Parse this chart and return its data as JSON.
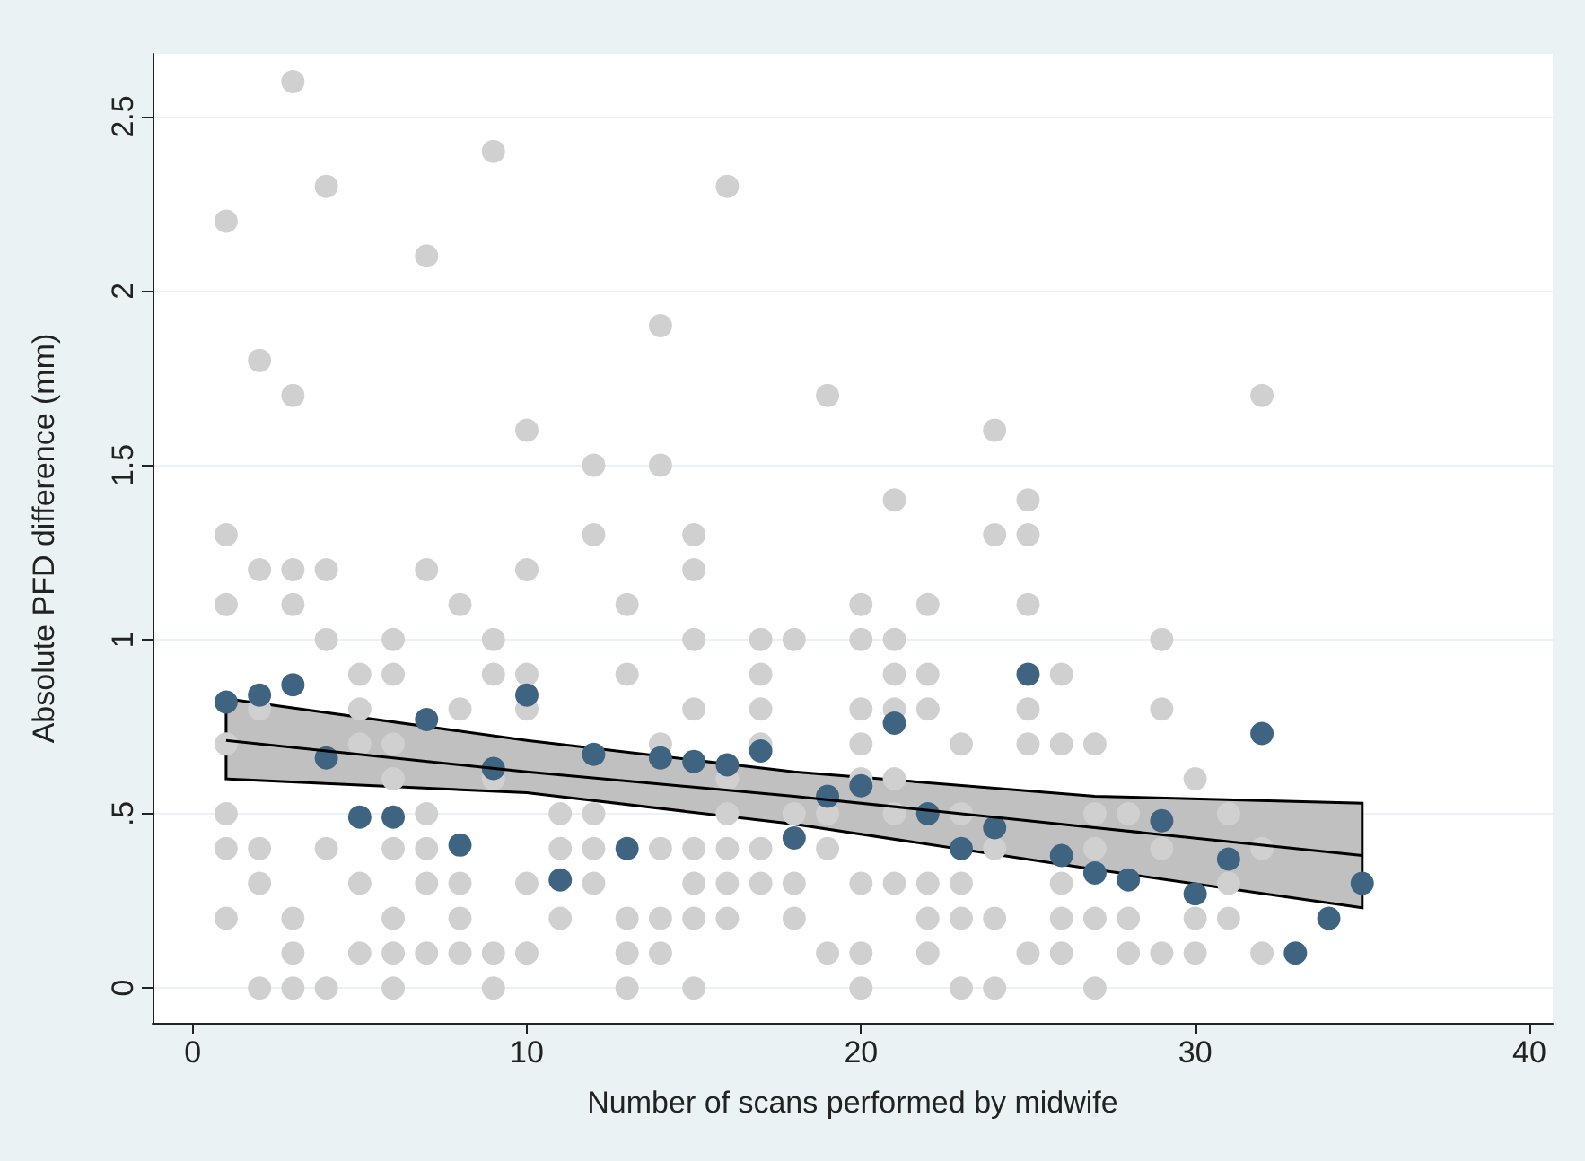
{
  "chart_data": {
    "type": "scatter",
    "xlabel": "Number of scans performed by midwife",
    "ylabel": "Absolute PFD difference (mm)",
    "xlim": [
      -1.2,
      40.7
    ],
    "ylim": [
      -0.1,
      2.68
    ],
    "xticks": [
      0,
      10,
      20,
      30,
      40
    ],
    "yticks": [
      0,
      {
        "value": 0.5,
        "label": ".5"
      },
      1,
      1.5,
      2,
      2.5
    ],
    "grid": "y",
    "marker": "circle",
    "series": [
      {
        "color": "#d0d0d0",
        "x": [
          1,
          1,
          1,
          1,
          1,
          1,
          1,
          2,
          2,
          2,
          2,
          2,
          2,
          3,
          3,
          3,
          3,
          3,
          3,
          3,
          4,
          4,
          4,
          4,
          4,
          5,
          5,
          5,
          5,
          5,
          6,
          6,
          6,
          6,
          6,
          6,
          6,
          6,
          7,
          7,
          7,
          7,
          7,
          7,
          8,
          8,
          8,
          8,
          8,
          9,
          9,
          9,
          9,
          9,
          9,
          10,
          10,
          10,
          10,
          10,
          10,
          11,
          11,
          11,
          12,
          12,
          12,
          12,
          12,
          13,
          13,
          13,
          13,
          13,
          14,
          14,
          14,
          14,
          14,
          14,
          15,
          15,
          15,
          15,
          15,
          15,
          15,
          15,
          16,
          16,
          16,
          16,
          16,
          16,
          17,
          17,
          17,
          17,
          17,
          17,
          18,
          18,
          18,
          18,
          19,
          19,
          19,
          19,
          20,
          20,
          20,
          20,
          20,
          20,
          20,
          20,
          21,
          21,
          21,
          21,
          21,
          21,
          21,
          22,
          22,
          22,
          22,
          22,
          22,
          23,
          23,
          23,
          23,
          23,
          24,
          24,
          24,
          24,
          24,
          25,
          25,
          25,
          25,
          25,
          25,
          26,
          26,
          26,
          26,
          26,
          27,
          27,
          27,
          27,
          27,
          28,
          28,
          28,
          29,
          29,
          29,
          29,
          30,
          30,
          30,
          31,
          31,
          31,
          32,
          32,
          32
        ],
        "values": [
          2.2,
          1.3,
          1.1,
          0.7,
          0.5,
          0.4,
          0.2,
          1.8,
          1.2,
          0.8,
          0.4,
          0.3,
          0,
          2.6,
          1.7,
          1.2,
          1.1,
          0.2,
          0.1,
          0,
          2.3,
          1.2,
          1,
          0.4,
          0,
          0.9,
          0.8,
          0.7,
          0.3,
          0.1,
          1,
          0.9,
          0.7,
          0.6,
          0.4,
          0.2,
          0.1,
          0,
          2.1,
          1.2,
          0.5,
          0.4,
          0.3,
          0.1,
          1.1,
          0.8,
          0.3,
          0.2,
          0.1,
          2.4,
          1,
          0.9,
          0.6,
          0.1,
          0,
          1.6,
          1.2,
          0.9,
          0.8,
          0.3,
          0.1,
          0.5,
          0.4,
          0.2,
          1.5,
          1.3,
          0.5,
          0.4,
          0.3,
          1.1,
          0.9,
          0.2,
          0.1,
          0,
          1.9,
          1.5,
          0.7,
          0.4,
          0.2,
          0.1,
          1.3,
          1.2,
          1,
          0.8,
          0.4,
          0.3,
          0.2,
          0,
          2.3,
          0.6,
          0.5,
          0.4,
          0.3,
          0.2,
          1,
          0.9,
          0.8,
          0.7,
          0.4,
          0.3,
          1,
          0.5,
          0.3,
          0.2,
          1.7,
          0.5,
          0.4,
          0.1,
          1.1,
          1,
          0.8,
          0.7,
          0.6,
          0.3,
          0.1,
          0,
          1.4,
          1,
          0.9,
          0.8,
          0.6,
          0.5,
          0.3,
          1.1,
          0.9,
          0.8,
          0.3,
          0.2,
          0.1,
          0.7,
          0.5,
          0.3,
          0.2,
          0,
          1.6,
          1.3,
          0.4,
          0.2,
          0,
          1.4,
          1.3,
          1.1,
          0.8,
          0.7,
          0.1,
          0.9,
          0.7,
          0.3,
          0.2,
          0.1,
          0.7,
          0.5,
          0.4,
          0.2,
          0,
          0.5,
          0.2,
          0.1,
          1,
          0.8,
          0.4,
          0.1,
          0.6,
          0.2,
          0.1,
          0.5,
          0.3,
          0.2,
          1.7,
          0.4,
          0.1
        ]
      },
      {
        "type": "line",
        "marker": "none",
        "color": "#000000",
        "x": [
          1,
          10,
          18,
          27,
          35
        ],
        "values": [
          0.71,
          0.62,
          0.55,
          0.46,
          0.38
        ],
        "lower": [
          0.6,
          0.56,
          0.47,
          0.34,
          0.23
        ],
        "upper": [
          0.83,
          0.71,
          0.62,
          0.55,
          0.53
        ]
      },
      {
        "color": "#3e6481",
        "x": [
          1,
          2,
          3,
          4,
          5,
          6,
          7,
          8,
          9,
          10,
          11,
          12,
          13,
          14,
          15,
          16,
          17,
          18,
          19,
          20,
          21,
          22,
          23,
          24,
          25,
          26,
          27,
          28,
          29,
          30,
          31,
          32,
          33,
          34,
          35
        ],
        "values": [
          0.82,
          0.84,
          0.87,
          0.66,
          0.49,
          0.49,
          0.77,
          0.41,
          0.63,
          0.84,
          0.31,
          0.67,
          0.4,
          0.66,
          0.65,
          0.64,
          0.68,
          0.43,
          0.55,
          0.58,
          0.76,
          0.5,
          0.4,
          0.46,
          0.9,
          0.38,
          0.33,
          0.31,
          0.48,
          0.27,
          0.37,
          0.73,
          0.1,
          0.2,
          0.3
        ]
      }
    ]
  }
}
